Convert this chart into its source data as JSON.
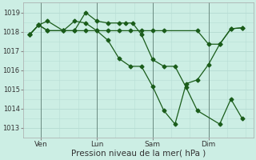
{
  "bg_color": "#cceee4",
  "grid_color": "#b8ddd4",
  "line_color": "#1a5c1a",
  "xlabel": "Pression niveau de la mer( hPa )",
  "xlabel_fontsize": 7.5,
  "ylim": [
    1012.5,
    1019.5
  ],
  "yticks": [
    1013,
    1014,
    1015,
    1016,
    1017,
    1018,
    1019
  ],
  "xtick_labels": [
    "Ven",
    "Lun",
    "Sam",
    "Dim"
  ],
  "xtick_positions": [
    0.5,
    3.0,
    5.5,
    8.0
  ],
  "vline_positions": [
    0.5,
    3.0,
    5.5,
    8.0
  ],
  "series1": {
    "x": [
      0.0,
      0.4,
      0.8,
      1.5,
      2.0,
      2.5,
      3.0,
      3.5,
      4.0,
      4.3,
      4.6,
      5.0,
      5.5,
      6.0,
      6.5,
      7.0,
      7.5,
      8.5,
      9.0,
      9.5
    ],
    "y": [
      1017.85,
      1018.35,
      1018.55,
      1018.05,
      1018.05,
      1019.0,
      1018.55,
      1018.45,
      1018.45,
      1018.45,
      1018.45,
      1017.85,
      1016.55,
      1016.2,
      1016.2,
      1015.1,
      1013.9,
      1013.2,
      1014.5,
      1013.5
    ]
  },
  "series2": {
    "x": [
      0.0,
      0.4,
      0.8,
      1.5,
      2.0,
      2.5,
      3.0,
      3.5,
      4.0,
      4.5,
      5.0,
      5.5,
      6.0,
      6.5,
      7.0,
      7.5,
      8.0,
      8.5,
      9.0,
      9.5
    ],
    "y": [
      1017.85,
      1018.35,
      1018.05,
      1018.05,
      1018.05,
      1018.05,
      1018.05,
      1017.55,
      1016.6,
      1016.2,
      1016.2,
      1015.15,
      1013.9,
      1013.2,
      1015.3,
      1015.5,
      1016.3,
      1017.35,
      1018.15,
      1018.2
    ]
  },
  "series3": {
    "x": [
      0.0,
      0.4,
      0.8,
      1.5,
      2.0,
      2.5,
      3.0,
      3.5,
      4.0,
      4.5,
      5.0,
      5.5,
      6.0,
      7.5,
      8.0,
      8.5,
      9.0,
      9.5
    ],
    "y": [
      1017.85,
      1018.35,
      1018.05,
      1018.05,
      1018.55,
      1018.45,
      1018.05,
      1018.05,
      1018.05,
      1018.05,
      1018.05,
      1018.05,
      1018.05,
      1018.05,
      1017.35,
      1017.35,
      1018.15,
      1018.2
    ]
  }
}
